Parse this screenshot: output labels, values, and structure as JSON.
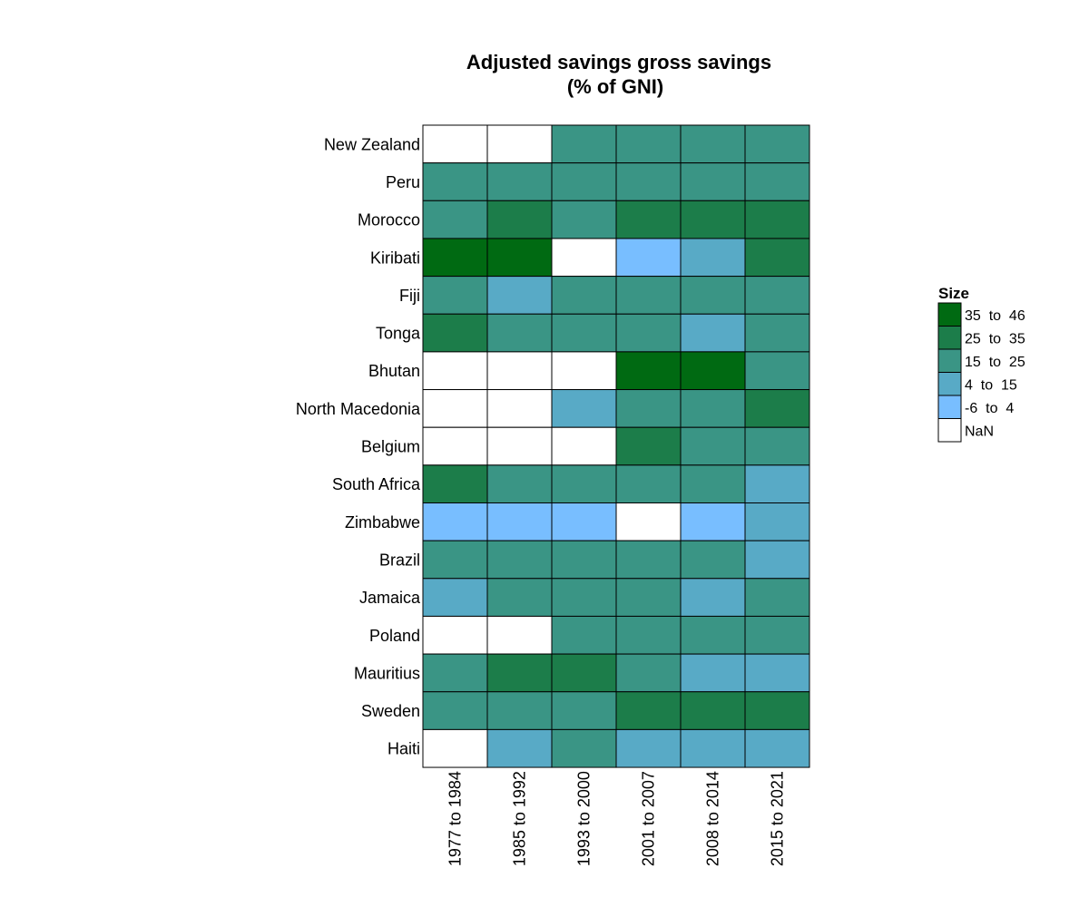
{
  "chart_data": {
    "type": "heatmap",
    "title": [
      "Adjusted savings gross savings",
      "(% of GNI)"
    ],
    "columns": [
      "1977 to 1984",
      "1985 to 1992",
      "1993 to 2000",
      "2001 to 2007",
      "2008 to 2014",
      "2015 to 2021"
    ],
    "rows": [
      {
        "name": "New Zealand",
        "bins": [
          "NaN",
          "NaN",
          "15 to 25",
          "15 to 25",
          "15 to 25",
          "15 to 25"
        ]
      },
      {
        "name": "Peru",
        "bins": [
          "15 to 25",
          "15 to 25",
          "15 to 25",
          "15 to 25",
          "15 to 25",
          "15 to 25"
        ]
      },
      {
        "name": "Morocco",
        "bins": [
          "15 to 25",
          "25 to 35",
          "15 to 25",
          "25 to 35",
          "25 to 35",
          "25 to 35"
        ]
      },
      {
        "name": "Kiribati",
        "bins": [
          "35 to 46",
          "35 to 46",
          "NaN",
          "-6 to 4",
          "4 to 15",
          "25 to 35"
        ]
      },
      {
        "name": "Fiji",
        "bins": [
          "15 to 25",
          "4 to 15",
          "15 to 25",
          "15 to 25",
          "15 to 25",
          "15 to 25"
        ]
      },
      {
        "name": "Tonga",
        "bins": [
          "25 to 35",
          "15 to 25",
          "15 to 25",
          "15 to 25",
          "4 to 15",
          "15 to 25"
        ]
      },
      {
        "name": "Bhutan",
        "bins": [
          "NaN",
          "NaN",
          "NaN",
          "35 to 46",
          "35 to 46",
          "15 to 25"
        ]
      },
      {
        "name": "North Macedonia",
        "bins": [
          "NaN",
          "NaN",
          "4 to 15",
          "15 to 25",
          "15 to 25",
          "25 to 35"
        ]
      },
      {
        "name": "Belgium",
        "bins": [
          "NaN",
          "NaN",
          "NaN",
          "25 to 35",
          "15 to 25",
          "15 to 25"
        ]
      },
      {
        "name": "South Africa",
        "bins": [
          "25 to 35",
          "15 to 25",
          "15 to 25",
          "15 to 25",
          "15 to 25",
          "4 to 15"
        ]
      },
      {
        "name": "Zimbabwe",
        "bins": [
          "-6 to 4",
          "-6 to 4",
          "-6 to 4",
          "NaN",
          "-6 to 4",
          "4 to 15"
        ]
      },
      {
        "name": "Brazil",
        "bins": [
          "15 to 25",
          "15 to 25",
          "15 to 25",
          "15 to 25",
          "15 to 25",
          "4 to 15"
        ]
      },
      {
        "name": "Jamaica",
        "bins": [
          "4 to 15",
          "15 to 25",
          "15 to 25",
          "15 to 25",
          "4 to 15",
          "15 to 25"
        ]
      },
      {
        "name": "Poland",
        "bins": [
          "NaN",
          "NaN",
          "15 to 25",
          "15 to 25",
          "15 to 25",
          "15 to 25"
        ]
      },
      {
        "name": "Mauritius",
        "bins": [
          "15 to 25",
          "25 to 35",
          "25 to 35",
          "15 to 25",
          "4 to 15",
          "4 to 15"
        ]
      },
      {
        "name": "Sweden",
        "bins": [
          "15 to 25",
          "15 to 25",
          "15 to 25",
          "25 to 35",
          "25 to 35",
          "25 to 35"
        ]
      },
      {
        "name": "Haiti",
        "bins": [
          "NaN",
          "4 to 15",
          "15 to 25",
          "4 to 15",
          "4 to 15",
          "4 to 15"
        ]
      }
    ],
    "legend": {
      "title": "Size",
      "placement": "right",
      "items": [
        {
          "label": "35  to  46",
          "bin": "35 to 46",
          "color": "#006A12"
        },
        {
          "label": "25  to  35",
          "bin": "25 to 35",
          "color": "#1C7D4A"
        },
        {
          "label": "15  to  25",
          "bin": "15 to 25",
          "color": "#3A9585"
        },
        {
          "label": "4  to  15",
          "bin": "4 to 15",
          "color": "#58AAC6"
        },
        {
          "label": "-6  to  4",
          "bin": "-6 to 4",
          "color": "#78BEFF"
        },
        {
          "label": "NaN",
          "bin": "NaN",
          "color": "#FFFFFF"
        }
      ]
    }
  }
}
